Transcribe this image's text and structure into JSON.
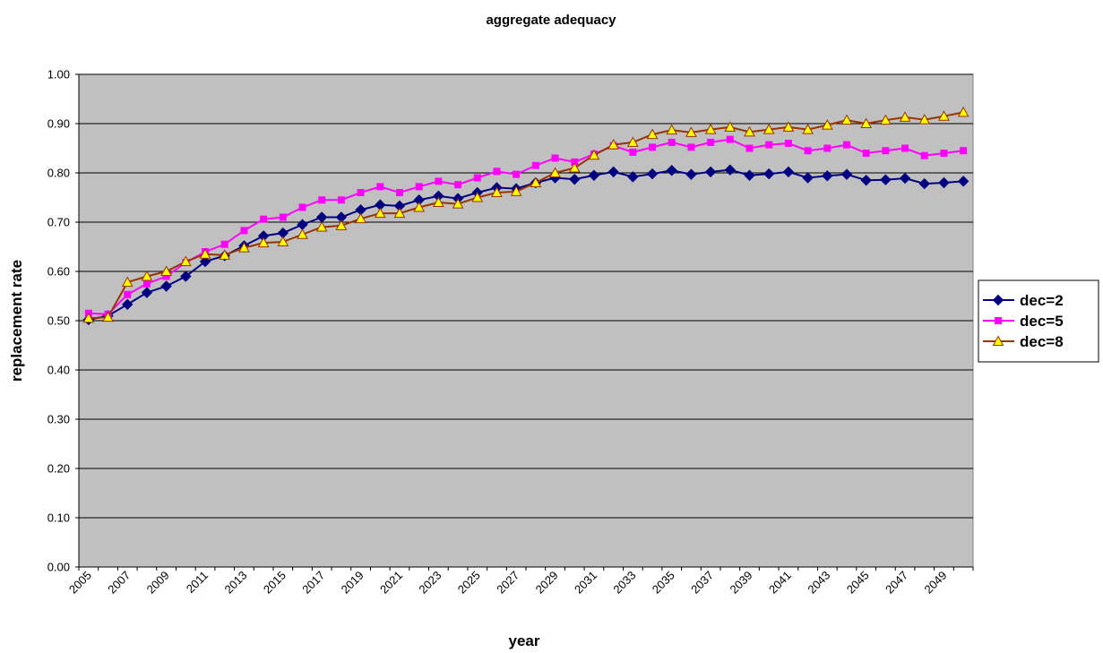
{
  "chart_data": {
    "type": "line",
    "title": "aggregate adequacy",
    "x_label": "year",
    "y_label": "replacement rate",
    "categories": [
      "2005",
      null,
      "2007",
      null,
      "2009",
      null,
      "2011",
      null,
      "2013",
      null,
      "2015",
      null,
      "2017",
      null,
      "2019",
      null,
      "2021",
      null,
      "2023",
      null,
      "2025",
      null,
      "2027",
      null,
      "2029",
      null,
      "2031",
      null,
      "2033",
      null,
      "2035",
      null,
      "2037",
      null,
      "2039",
      null,
      "2041",
      null,
      "2043",
      null,
      "2045",
      null,
      "2047",
      null,
      "2049",
      null
    ],
    "ylim": [
      0,
      1
    ],
    "yticks": [
      {
        "value": 0,
        "label": "0.00"
      },
      {
        "value": 0.1,
        "label": "0.10"
      },
      {
        "value": 0.2,
        "label": "0.20"
      },
      {
        "value": 0.3,
        "label": "0.30"
      },
      {
        "value": 0.4,
        "label": "0.40"
      },
      {
        "value": 0.5,
        "label": "0.50"
      },
      {
        "value": 0.6,
        "label": "0.60"
      },
      {
        "value": 0.7,
        "label": "0.70"
      },
      {
        "value": 0.8,
        "label": "0.80"
      },
      {
        "value": 0.9,
        "label": "0.90"
      },
      {
        "value": 1,
        "label": "1.00"
      }
    ],
    "grid": true,
    "legend": "right",
    "background": "#c0c0c0",
    "series": [
      {
        "name": "dec=2",
        "color": "#000080",
        "marker": "diamond",
        "marker_color": "#000080",
        "values": [
          0.502,
          0.51,
          0.533,
          0.557,
          0.57,
          0.59,
          0.62,
          0.632,
          0.652,
          0.672,
          0.678,
          0.695,
          0.71,
          0.71,
          0.725,
          0.735,
          0.733,
          0.745,
          0.753,
          0.748,
          0.76,
          0.77,
          0.768,
          0.78,
          0.79,
          0.787,
          0.795,
          0.802,
          0.792,
          0.798,
          0.805,
          0.797,
          0.802,
          0.806,
          0.795,
          0.798,
          0.802,
          0.79,
          0.794,
          0.797,
          0.785,
          0.786,
          0.789,
          0.778,
          0.78,
          0.783
        ]
      },
      {
        "name": "dec=5",
        "color": "#ff00ff",
        "marker": "square",
        "marker_color": "#ff00ff",
        "values": [
          0.515,
          0.513,
          0.553,
          0.575,
          0.59,
          0.618,
          0.64,
          0.655,
          0.683,
          0.706,
          0.71,
          0.73,
          0.745,
          0.745,
          0.76,
          0.772,
          0.76,
          0.772,
          0.783,
          0.776,
          0.79,
          0.803,
          0.797,
          0.815,
          0.83,
          0.822,
          0.838,
          0.855,
          0.842,
          0.852,
          0.862,
          0.852,
          0.862,
          0.868,
          0.85,
          0.857,
          0.86,
          0.845,
          0.85,
          0.857,
          0.84,
          0.845,
          0.85,
          0.835,
          0.84,
          0.845
        ]
      },
      {
        "name": "dec=8",
        "color": "#993300",
        "marker": "triangle",
        "marker_color": "#ffff00",
        "values": [
          0.505,
          0.507,
          0.578,
          0.59,
          0.6,
          0.62,
          0.635,
          0.633,
          0.648,
          0.658,
          0.66,
          0.675,
          0.69,
          0.693,
          0.707,
          0.718,
          0.718,
          0.73,
          0.74,
          0.737,
          0.75,
          0.76,
          0.762,
          0.78,
          0.8,
          0.81,
          0.836,
          0.857,
          0.862,
          0.878,
          0.887,
          0.882,
          0.888,
          0.893,
          0.883,
          0.888,
          0.893,
          0.888,
          0.897,
          0.907,
          0.9,
          0.907,
          0.913,
          0.908,
          0.915,
          0.923
        ]
      }
    ]
  }
}
